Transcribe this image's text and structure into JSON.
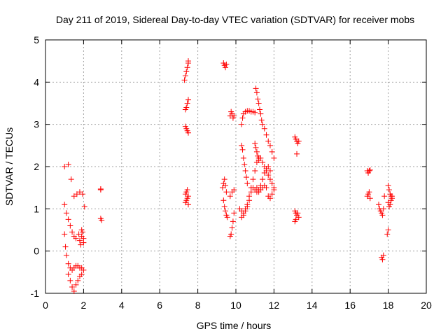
{
  "chart_data": {
    "type": "scatter",
    "title": "Day 211 of 2019, Sidereal Day-to-day VTEC variation (SDTVAR) for receiver mobs",
    "xlabel": "GPS time / hours",
    "ylabel": "SDTVAR / TECUs",
    "xlim": [
      0,
      20
    ],
    "ylim": [
      -1,
      5
    ],
    "xticks": [
      0,
      2,
      4,
      6,
      8,
      10,
      12,
      14,
      16,
      18,
      20
    ],
    "yticks": [
      -1,
      0,
      1,
      2,
      3,
      4,
      5
    ],
    "grid": true,
    "marker": "+",
    "color": "#ff0000",
    "segments": [
      {
        "name": "early-upper",
        "x": [
          1.0,
          1.2,
          1.35,
          1.5,
          1.65,
          1.8,
          1.95,
          2.05
        ],
        "y": [
          2.0,
          2.05,
          1.7,
          1.3,
          1.35,
          1.4,
          1.35,
          1.05
        ]
      },
      {
        "name": "early-upper-b",
        "x": [
          1.0,
          1.1,
          1.2,
          1.3,
          1.4,
          1.5,
          1.6,
          1.75,
          1.9,
          2.0
        ],
        "y": [
          1.1,
          0.9,
          0.75,
          0.6,
          0.45,
          0.35,
          0.3,
          0.4,
          0.5,
          0.3
        ]
      },
      {
        "name": "early-mid",
        "x": [
          1.0,
          1.05,
          1.1,
          1.2,
          1.3,
          1.4,
          1.5,
          1.6,
          1.7,
          1.8,
          1.9,
          2.0
        ],
        "y": [
          0.4,
          0.1,
          -0.1,
          -0.3,
          -0.4,
          -0.45,
          -0.4,
          -0.35,
          -0.35,
          -0.4,
          -0.4,
          -0.45
        ]
      },
      {
        "name": "early-low",
        "x": [
          1.2,
          1.3,
          1.4,
          1.5,
          1.6,
          1.7,
          1.8,
          1.9
        ],
        "y": [
          -0.55,
          -0.7,
          -0.85,
          -0.95,
          -0.8,
          -0.7,
          -0.6,
          -0.55
        ]
      },
      {
        "name": "early-pair",
        "x": [
          1.8,
          1.85,
          1.9,
          1.95,
          2.0
        ],
        "y": [
          0.25,
          0.15,
          0.35,
          0.45,
          0.2
        ]
      },
      {
        "name": "mark-3",
        "x": [
          2.9,
          2.9,
          2.9,
          2.95
        ],
        "y": [
          1.45,
          1.47,
          0.77,
          0.73
        ]
      },
      {
        "name": "t7-upper",
        "x": [
          7.3,
          7.35,
          7.4,
          7.45,
          7.5,
          7.5
        ],
        "y": [
          4.05,
          4.15,
          4.25,
          4.35,
          4.45,
          4.5
        ]
      },
      {
        "name": "t7-mid",
        "x": [
          7.35,
          7.4,
          7.45,
          7.5,
          7.35,
          7.4,
          7.45,
          7.5
        ],
        "y": [
          3.35,
          3.4,
          3.5,
          3.58,
          2.95,
          2.9,
          2.85,
          2.8
        ]
      },
      {
        "name": "t7-low",
        "x": [
          7.35,
          7.4,
          7.45,
          7.5,
          7.35,
          7.4,
          7.45,
          7.5
        ],
        "y": [
          1.15,
          1.2,
          1.25,
          1.1,
          1.35,
          1.4,
          1.45,
          1.3
        ]
      },
      {
        "name": "t9-top",
        "x": [
          9.35,
          9.4,
          9.45,
          9.5
        ],
        "y": [
          4.45,
          4.4,
          4.35,
          4.42
        ]
      },
      {
        "name": "t9-mid",
        "x": [
          9.3,
          9.35,
          9.4,
          9.45,
          9.5
        ],
        "y": [
          1.5,
          1.6,
          1.7,
          1.55,
          1.4
        ]
      },
      {
        "name": "t9-low",
        "x": [
          9.35,
          9.4,
          9.45,
          9.5,
          9.55
        ],
        "y": [
          1.2,
          1.05,
          0.95,
          0.85,
          0.8
        ]
      },
      {
        "name": "t9-dip",
        "x": [
          9.7,
          9.75,
          9.8,
          9.85,
          9.9
        ],
        "y": [
          0.35,
          0.4,
          0.55,
          0.7,
          0.9
        ]
      },
      {
        "name": "t9-b",
        "x": [
          9.7,
          9.8,
          9.9
        ],
        "y": [
          1.3,
          1.4,
          1.45
        ]
      },
      {
        "name": "t10-top",
        "x": [
          9.7,
          9.75,
          9.8,
          9.85,
          9.9
        ],
        "y": [
          3.2,
          3.3,
          3.25,
          3.15,
          3.2
        ]
      },
      {
        "name": "t10-arc",
        "x": [
          10.3,
          10.35,
          10.4,
          10.5,
          10.6,
          10.7,
          10.8,
          10.9,
          11.0
        ],
        "y": [
          3.0,
          3.15,
          3.25,
          3.3,
          3.32,
          3.32,
          3.3,
          3.3,
          3.28
        ]
      },
      {
        "name": "t10-rise",
        "x": [
          10.3,
          10.35,
          10.4,
          10.45,
          10.5,
          10.55,
          10.6
        ],
        "y": [
          2.5,
          2.4,
          2.2,
          2.05,
          1.9,
          1.75,
          1.6
        ]
      },
      {
        "name": "t10-band",
        "x": [
          10.2,
          10.3,
          10.4,
          10.5,
          10.6,
          10.7,
          10.8,
          10.9,
          11.0,
          11.1,
          11.2,
          11.3,
          11.4,
          11.5,
          11.6,
          11.7,
          11.8,
          11.9,
          12.0
        ],
        "y": [
          1.0,
          0.95,
          0.9,
          1.0,
          1.1,
          1.3,
          1.5,
          1.7,
          1.9,
          2.1,
          2.2,
          2.2,
          2.1,
          2.0,
          1.9,
          1.8,
          1.7,
          1.6,
          1.5
        ]
      },
      {
        "name": "t10-band2",
        "x": [
          10.3,
          10.4,
          10.5,
          10.6,
          10.7,
          10.8,
          10.9,
          11.0,
          11.1,
          11.2,
          11.3,
          11.4,
          11.5,
          11.6,
          11.7,
          11.8
        ],
        "y": [
          0.8,
          0.85,
          0.95,
          1.05,
          1.2,
          1.4,
          1.5,
          1.45,
          1.4,
          1.45,
          1.55,
          1.7,
          1.85,
          1.95,
          2.0,
          1.9
        ]
      },
      {
        "name": "t11-top",
        "x": [
          11.05,
          11.1,
          11.15,
          11.2,
          11.25,
          11.3,
          11.35,
          11.4,
          11.5,
          11.6,
          11.7,
          11.8,
          11.9,
          12.0
        ],
        "y": [
          3.85,
          3.75,
          3.6,
          3.5,
          3.35,
          3.25,
          3.1,
          3.0,
          2.9,
          2.75,
          2.6,
          2.5,
          2.35,
          2.2
        ]
      },
      {
        "name": "t11-low",
        "x": [
          11.1,
          11.2,
          11.3,
          11.4,
          11.5,
          11.6,
          11.7,
          11.8,
          11.9,
          12.0
        ],
        "y": [
          1.5,
          1.4,
          1.45,
          1.5,
          1.55,
          1.5,
          1.3,
          1.25,
          1.35,
          1.45
        ]
      },
      {
        "name": "t11-mid",
        "x": [
          11.0,
          11.05,
          11.1,
          11.15,
          11.2
        ],
        "y": [
          2.55,
          2.45,
          2.35,
          2.25,
          2.15
        ]
      },
      {
        "name": "t13",
        "x": [
          13.1,
          13.15,
          13.2,
          13.25,
          13.3,
          13.1,
          13.15,
          13.2,
          13.25,
          13.3,
          13.1,
          13.15,
          13.2
        ],
        "y": [
          2.7,
          2.65,
          2.6,
          2.55,
          2.6,
          0.95,
          0.9,
          0.85,
          0.9,
          0.8,
          0.7,
          0.75,
          2.3
        ]
      },
      {
        "name": "t17",
        "x": [
          16.9,
          16.95,
          17.0,
          17.05,
          16.9,
          16.95,
          17.0,
          17.05
        ],
        "y": [
          1.9,
          1.85,
          1.9,
          1.92,
          1.3,
          1.35,
          1.4,
          1.25
        ]
      },
      {
        "name": "t17b",
        "x": [
          17.5,
          17.55,
          17.6,
          17.65,
          17.7,
          17.75,
          17.8
        ],
        "y": [
          1.1,
          1.0,
          0.95,
          0.9,
          0.85,
          1.0,
          1.3
        ]
      },
      {
        "name": "t17c",
        "x": [
          17.65,
          17.7,
          17.75
        ],
        "y": [
          -0.15,
          -0.2,
          -0.1
        ]
      },
      {
        "name": "t18",
        "x": [
          18.0,
          18.05,
          18.1,
          18.15,
          18.2,
          18.0,
          18.05,
          18.1,
          18.15,
          18.2,
          17.95,
          18.0
        ],
        "y": [
          1.55,
          1.45,
          1.35,
          1.3,
          1.25,
          1.15,
          1.05,
          1.1,
          1.2,
          1.3,
          0.4,
          0.5
        ]
      }
    ]
  }
}
